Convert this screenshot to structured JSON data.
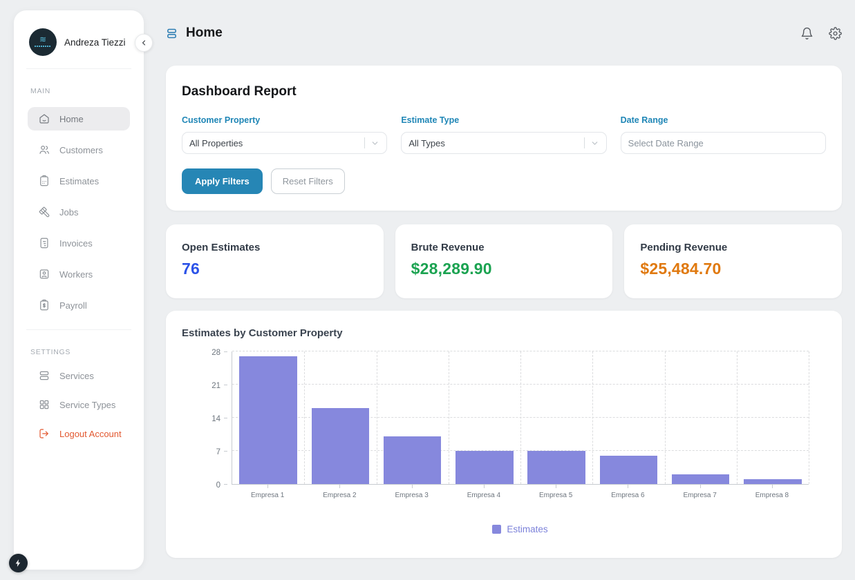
{
  "sidebar": {
    "user_name": "Andreza Tiezzi",
    "section_main_label": "MAIN",
    "section_settings_label": "SETTINGS",
    "main_items": [
      "Home",
      "Customers",
      "Estimates",
      "Jobs",
      "Invoices",
      "Workers",
      "Payroll"
    ],
    "settings_items": [
      "Services",
      "Service Types",
      "Logout Account"
    ]
  },
  "header": {
    "title": "Home"
  },
  "filters": {
    "title": "Dashboard Report",
    "customer_property": {
      "label": "Customer Property",
      "value": "All Properties"
    },
    "estimate_type": {
      "label": "Estimate Type",
      "value": "All Types"
    },
    "date_range": {
      "label": "Date Range",
      "placeholder": "Select Date Range"
    },
    "apply_label": "Apply Filters",
    "reset_label": "Reset Filters"
  },
  "stats": [
    {
      "label": "Open Estimates",
      "value": "76",
      "color": "#2b52e8"
    },
    {
      "label": "Brute Revenue",
      "value": "$28,289.90",
      "color": "#1ba351"
    },
    {
      "label": "Pending Revenue",
      "value": "$25,484.70",
      "color": "#e0790f"
    }
  ],
  "chart_data": {
    "type": "bar",
    "title": "Estimates by Customer Property",
    "categories": [
      "Empresa 1",
      "Empresa 2",
      "Empresa 3",
      "Empresa 4",
      "Empresa 5",
      "Empresa 6",
      "Empresa 7",
      "Empresa 8"
    ],
    "series": [
      {
        "name": "Estimates",
        "values": [
          27,
          16,
          10,
          7,
          7,
          6,
          2,
          1
        ]
      }
    ],
    "xlabel": "",
    "ylabel": "",
    "ylim": [
      0,
      28
    ],
    "yticks": [
      0,
      7,
      14,
      21,
      28
    ],
    "grid": "dashed",
    "legend_position": "bottom",
    "bar_color": "#8688dd",
    "legend_text_color": "#7c82da"
  },
  "colors": {
    "accent_teal": "#2686b5",
    "filter_label_blue": "#1f86b6",
    "bar_purple": "#8688dd",
    "logout_red": "#e2572f",
    "page_background": "#edeff1"
  }
}
